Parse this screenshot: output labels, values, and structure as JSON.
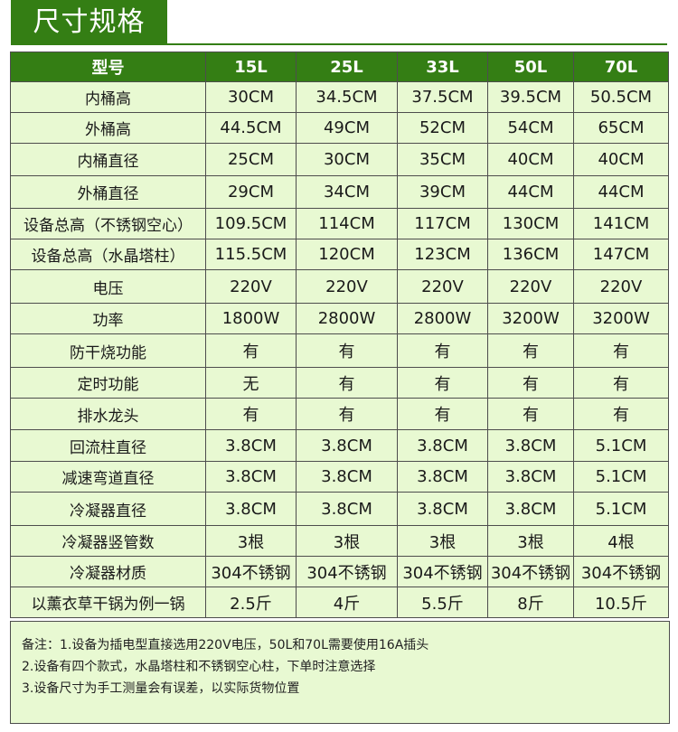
{
  "section_title": "尺寸规格",
  "table": {
    "header": [
      "型号",
      "15L",
      "25L",
      "33L",
      "50L",
      "70L"
    ],
    "rows": [
      {
        "label": "内桶高",
        "values": [
          "30CM",
          "34.5CM",
          "37.5CM",
          "39.5CM",
          "50.5CM"
        ]
      },
      {
        "label": "外桶高",
        "values": [
          "44.5CM",
          "49CM",
          "52CM",
          "54CM",
          "65CM"
        ]
      },
      {
        "label": "内桶直径",
        "values": [
          "25CM",
          "30CM",
          "35CM",
          "40CM",
          "40CM"
        ]
      },
      {
        "label": "外桶直径",
        "values": [
          "29CM",
          "34CM",
          "39CM",
          "44CM",
          "44CM"
        ]
      },
      {
        "label": "设备总高（不锈钢空心）",
        "values": [
          "109.5CM",
          "114CM",
          "117CM",
          "130CM",
          "141CM"
        ]
      },
      {
        "label": "设备总高（水晶塔柱）",
        "values": [
          "115.5CM",
          "120CM",
          "123CM",
          "136CM",
          "147CM"
        ]
      },
      {
        "label": "电压",
        "values": [
          "220V",
          "220V",
          "220V",
          "220V",
          "220V"
        ]
      },
      {
        "label": "功率",
        "values": [
          "1800W",
          "2800W",
          "2800W",
          "3200W",
          "3200W"
        ]
      },
      {
        "label": "防干烧功能",
        "values": [
          "有",
          "有",
          "有",
          "有",
          "有"
        ]
      },
      {
        "label": "定时功能",
        "values": [
          "无",
          "有",
          "有",
          "有",
          "有"
        ]
      },
      {
        "label": "排水龙头",
        "values": [
          "有",
          "有",
          "有",
          "有",
          "有"
        ]
      },
      {
        "label": "回流柱直径",
        "values": [
          "3.8CM",
          "3.8CM",
          "3.8CM",
          "3.8CM",
          "5.1CM"
        ]
      },
      {
        "label": "减速弯道直径",
        "values": [
          "3.8CM",
          "3.8CM",
          "3.8CM",
          "3.8CM",
          "5.1CM"
        ]
      },
      {
        "label": "冷凝器直径",
        "values": [
          "3.8CM",
          "3.8CM",
          "3.8CM",
          "3.8CM",
          "5.1CM"
        ]
      },
      {
        "label": "冷凝器竖管数",
        "values": [
          "3根",
          "3根",
          "3根",
          "3根",
          "4根"
        ]
      },
      {
        "label": "冷凝器材质",
        "values": [
          "304不锈钢",
          "304不锈钢",
          "304不锈钢",
          "304不锈钢",
          "304不锈钢"
        ]
      },
      {
        "label": "以薰衣草干锅为例一锅",
        "values": [
          "2.5斤",
          "4斤",
          "5.5斤",
          "8斤",
          "10.5斤"
        ]
      }
    ]
  },
  "notes": [
    "备注：1.设备为插电型直接选用220V电压，50L和70L需要使用16A插头",
    "2.设备有四个款式，水晶塔柱和不锈钢空心柱，下单时注意选择",
    "3.设备尺寸为手工测量会有误差，以实际货物位置"
  ]
}
